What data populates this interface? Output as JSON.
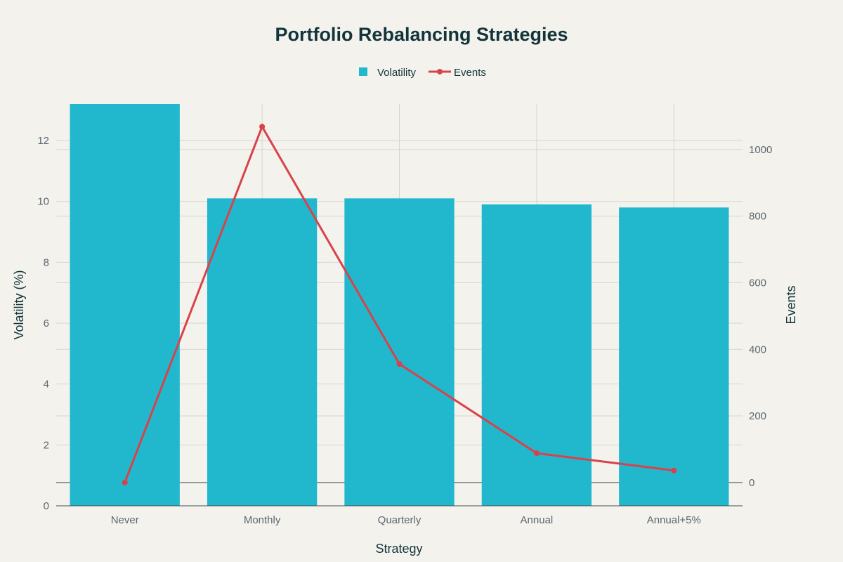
{
  "chart_data": {
    "type": "bar",
    "title": "Portfolio Rebalancing Strategies",
    "xlabel": "Strategy",
    "ylabel": "Volatility (%)",
    "y2label": "Events",
    "categories": [
      "Never",
      "Monthly",
      "Quarterly",
      "Annual",
      "Annual+5%"
    ],
    "series": [
      {
        "name": "Volatility",
        "type": "bar",
        "axis": "left",
        "values": [
          13.2,
          10.1,
          10.1,
          9.9,
          9.8
        ],
        "color": "#21b8cd"
      },
      {
        "name": "Events",
        "type": "line",
        "axis": "right",
        "values": [
          0,
          1069,
          356,
          88,
          36
        ],
        "color": "#d9424a"
      }
    ],
    "ylim": [
      0,
      13.2
    ],
    "y2lim": [
      -70,
      1137
    ],
    "yticks": [
      0,
      2,
      4,
      6,
      8,
      10,
      12
    ],
    "y2ticks": [
      0,
      200,
      400,
      600,
      800,
      1000
    ],
    "legend_position": "top-center",
    "grid": true
  }
}
